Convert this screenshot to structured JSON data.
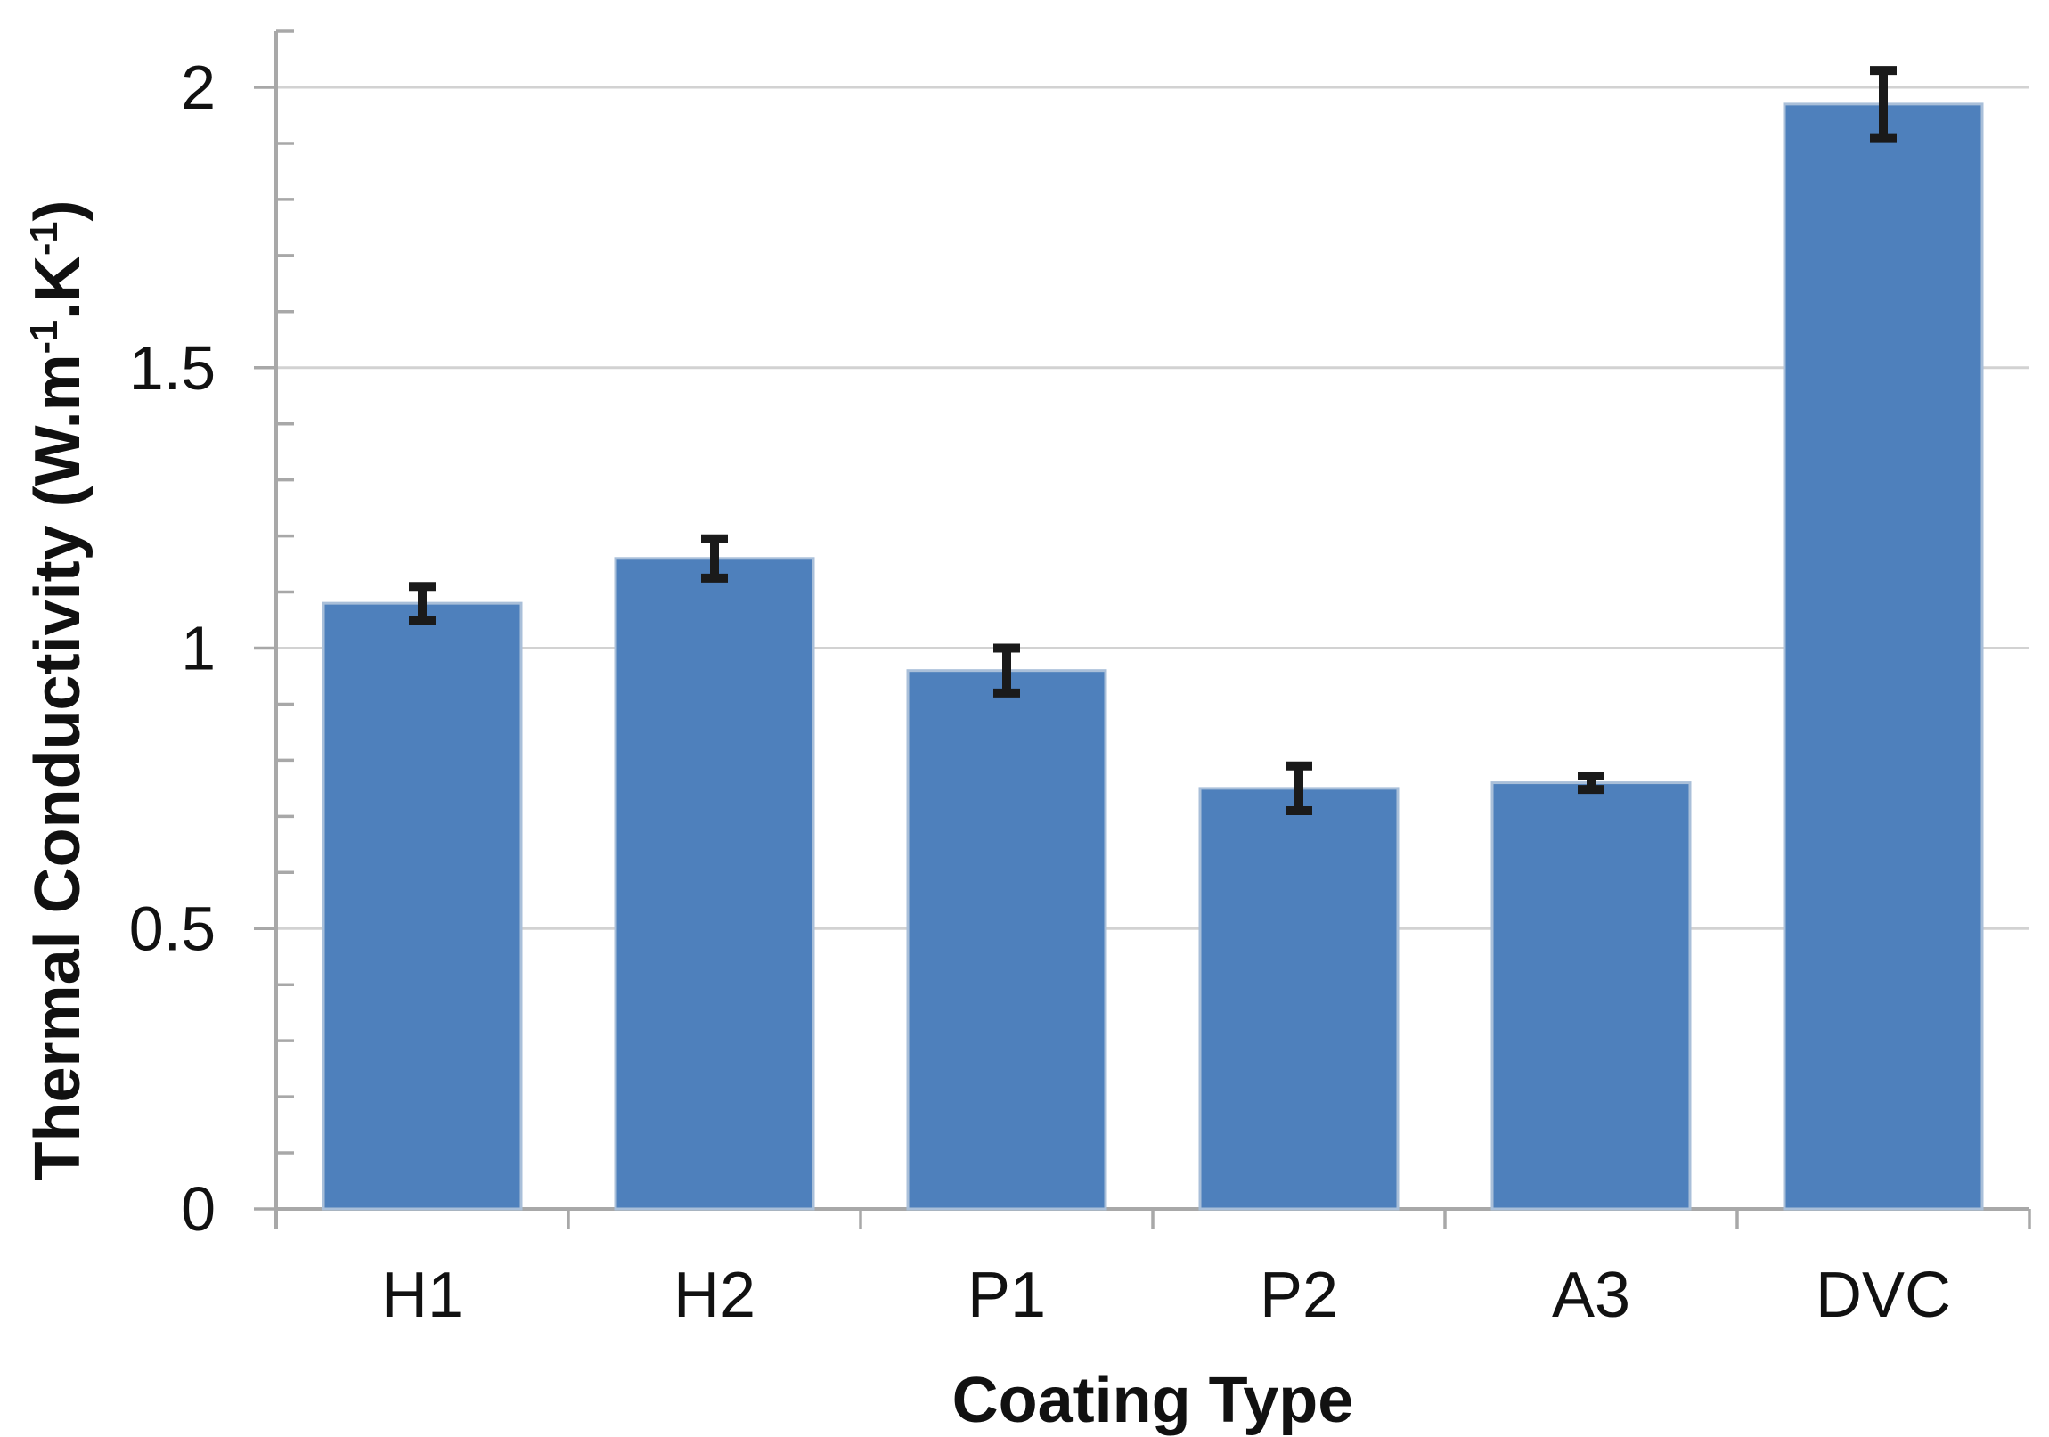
{
  "chart_data": {
    "type": "bar",
    "title": "",
    "xlabel": "Coating Type",
    "ylabel": "Thermal Conductivity (W.m⁻¹.K⁻¹)",
    "ylabel_parts": [
      {
        "text": "Thermal Conductivity (W.m"
      },
      {
        "text": "-1",
        "sup": true
      },
      {
        "text": ".K"
      },
      {
        "text": "-1",
        "sup": true
      },
      {
        "text": ")"
      }
    ],
    "categories": [
      "H1",
      "H2",
      "P1",
      "P2",
      "A3",
      "DVC"
    ],
    "series": [
      {
        "name": "Thermal Conductivity",
        "values": [
          1.08,
          1.16,
          0.96,
          0.75,
          0.76,
          1.97
        ],
        "errors": [
          0.03,
          0.035,
          0.04,
          0.04,
          0.012,
          0.06
        ]
      }
    ],
    "ylim": [
      0,
      2.1
    ],
    "y_major_ticks": [
      "0",
      "0.5",
      "1",
      "1.5",
      "2"
    ],
    "y_minor_step": 0.1,
    "grid": "horizontal-major",
    "legend": "none",
    "colors": {
      "bar_fill": "#4E80BC",
      "bar_border": "#A9BFD9",
      "error_bar": "#1a1a1a",
      "axis_line": "#a8a8a8",
      "gridline": "#d2d2d2",
      "text": "#111111"
    }
  }
}
